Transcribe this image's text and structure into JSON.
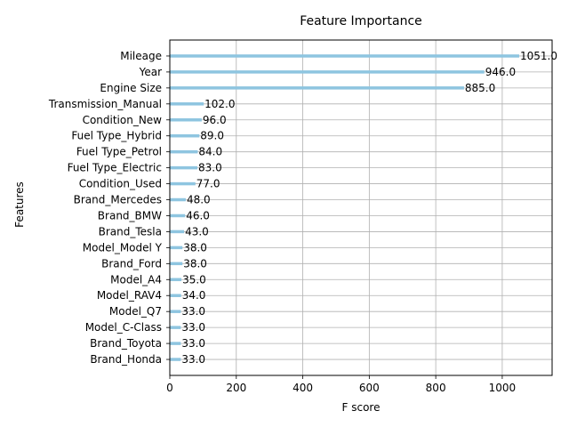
{
  "chart_data": {
    "type": "bar",
    "orientation": "horizontal",
    "title": "Feature Importance",
    "xlabel": "F score",
    "ylabel": "Features",
    "xlim": [
      0,
      1150
    ],
    "xticks": [
      0,
      200,
      400,
      600,
      800,
      1000
    ],
    "grid": true,
    "bar_color": "#8ec5e0",
    "categories": [
      "Mileage",
      "Year",
      "Engine Size",
      "Transmission_Manual",
      "Condition_New",
      "Fuel Type_Hybrid",
      "Fuel Type_Petrol",
      "Fuel Type_Electric",
      "Condition_Used",
      "Brand_Mercedes",
      "Brand_BMW",
      "Brand_Tesla",
      "Model_Model Y",
      "Brand_Ford",
      "Model_A4",
      "Model_RAV4",
      "Model_Q7",
      "Model_C-Class",
      "Brand_Toyota",
      "Brand_Honda"
    ],
    "values": [
      1051,
      946,
      885,
      102,
      96,
      89,
      84,
      83,
      77,
      48,
      46,
      43,
      38,
      38,
      35,
      34,
      33,
      33,
      33,
      33
    ],
    "value_labels": [
      "1051.0",
      "946.0",
      "885.0",
      "102.0",
      "96.0",
      "89.0",
      "84.0",
      "83.0",
      "77.0",
      "48.0",
      "46.0",
      "43.0",
      "38.0",
      "38.0",
      "35.0",
      "34.0",
      "33.0",
      "33.0",
      "33.0",
      "33.0"
    ]
  }
}
